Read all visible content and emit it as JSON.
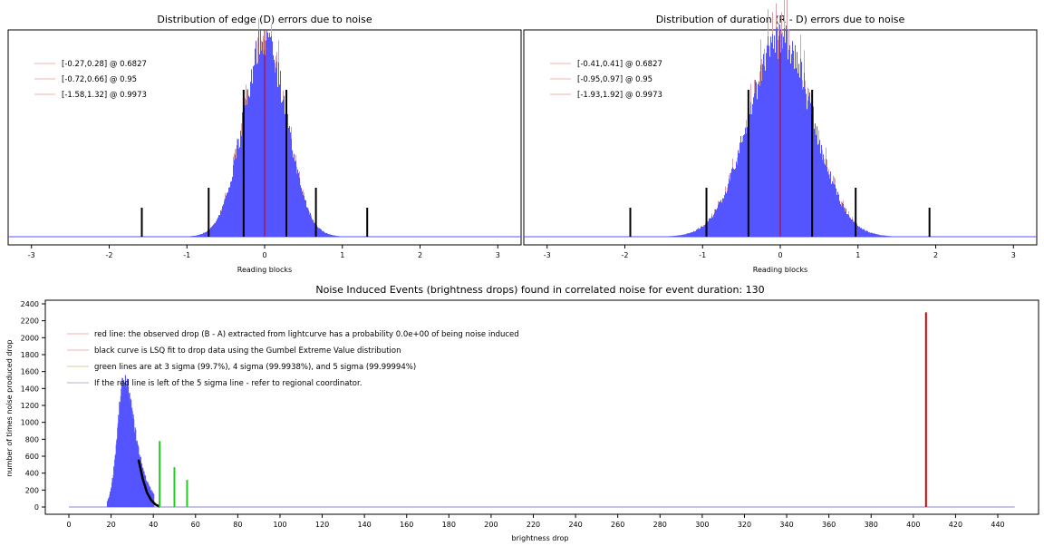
{
  "chart_data": [
    {
      "id": "edge",
      "type": "histogram",
      "title": "Distribution of edge (D) errors due to noise",
      "xlabel": "Reading blocks",
      "xlim": [
        -3.3,
        3.3
      ],
      "xticks": [
        -3,
        -2,
        -1,
        0,
        1,
        2,
        3
      ],
      "center": 0.0,
      "sigma": 0.275,
      "legend_placement": "top-left",
      "legend": [
        {
          "label": "[-0.27,0.28] @ 0.6827",
          "color": "#f0b0b0"
        },
        {
          "label": "[-0.72,0.66] @ 0.95",
          "color": "#f0b0b0"
        },
        {
          "label": "[-1.58,1.32] @ 0.9973",
          "color": "#f0b0b0"
        }
      ],
      "confidence_intervals": [
        {
          "level": 0.6827,
          "low": -0.27,
          "high": 0.28
        },
        {
          "level": 0.95,
          "low": -0.72,
          "high": 0.66
        },
        {
          "level": 0.9973,
          "low": -1.58,
          "high": 1.32
        }
      ],
      "colors": {
        "histogram": "#5555ff",
        "marker": "#000000",
        "zero_line": "#cc0000"
      }
    },
    {
      "id": "duration",
      "type": "histogram",
      "title": "Distribution of duration (R - D) errors due to noise",
      "xlabel": "Reading blocks",
      "xlim": [
        -3.3,
        3.3
      ],
      "xticks": [
        -3,
        -2,
        -1,
        0,
        1,
        2,
        3
      ],
      "center": 0.0,
      "sigma": 0.41,
      "legend_placement": "top-left",
      "legend": [
        {
          "label": "[-0.41,0.41] @ 0.6827",
          "color": "#f0b0b0"
        },
        {
          "label": "[-0.95,0.97] @ 0.95",
          "color": "#f0b0b0"
        },
        {
          "label": "[-1.93,1.92] @ 0.9973",
          "color": "#f0b0b0"
        }
      ],
      "confidence_intervals": [
        {
          "level": 0.6827,
          "low": -0.41,
          "high": 0.41
        },
        {
          "level": 0.95,
          "low": -0.95,
          "high": 0.97
        },
        {
          "level": 0.9973,
          "low": -1.93,
          "high": 1.92
        }
      ],
      "colors": {
        "histogram": "#5555ff",
        "marker": "#000000",
        "zero_line": "#cc0000"
      }
    },
    {
      "id": "noise-events",
      "type": "histogram",
      "title": "Noise Induced Events (brightness drops) found in correlated noise for event duration: 130",
      "xlabel": "brightness drop",
      "ylabel": "number of times noise produced drop",
      "xlim": [
        -5,
        450
      ],
      "ylim": [
        -200,
        2400
      ],
      "xticks": [
        0,
        20,
        40,
        60,
        80,
        100,
        120,
        140,
        160,
        180,
        200,
        220,
        240,
        260,
        280,
        300,
        320,
        340,
        360,
        380,
        400,
        420,
        440
      ],
      "yticks": [
        0,
        200,
        400,
        600,
        800,
        1000,
        1200,
        1400,
        1600,
        1800,
        2000,
        2200,
        2400
      ],
      "histogram": {
        "mode": 26,
        "peak": 1480,
        "left_start": 18,
        "right_tail_end": 40
      },
      "gumbel_fit": {
        "x": [
          33,
          35,
          37,
          39,
          41,
          43
        ],
        "y": [
          560,
          330,
          170,
          80,
          30,
          5
        ]
      },
      "sigma_lines": [
        {
          "label": "3 sigma",
          "x": 43,
          "height": 780
        },
        {
          "label": "4 sigma",
          "x": 50,
          "height": 470
        },
        {
          "label": "5 sigma",
          "x": 56,
          "height": 320
        }
      ],
      "observed_drop": {
        "x": 406,
        "height": 2300
      },
      "legend_placement": "top-left",
      "legend": [
        {
          "label": "red line: the observed drop (B - A) extracted from lightcurve has a probability 0.0e+00 of being noise induced",
          "color": "#f0b0b0"
        },
        {
          "label": "black curve is LSQ fit to drop data using the Gumbel Extreme Value distribution",
          "color": "#f0b0b0"
        },
        {
          "label": "green lines are at 3 sigma (99.7%), 4 sigma (99.9938%), and 5 sigma (99.99994%)",
          "color": "#d0d0a0"
        },
        {
          "label": "If the red line is left of the 5 sigma line - refer to regional coordinator.",
          "color": "#b0b0d0"
        }
      ],
      "colors": {
        "histogram": "#5555ff",
        "fit": "#000000",
        "sigma": "#22cc22",
        "observed": "#cc0000"
      }
    }
  ]
}
